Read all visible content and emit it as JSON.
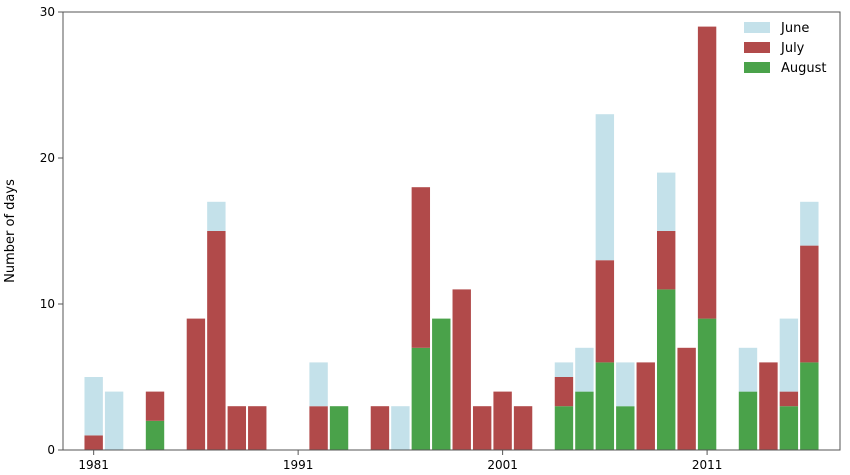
{
  "chart_data": {
    "type": "bar",
    "stacked": true,
    "title": "",
    "xlabel": "",
    "ylabel": "Number of days",
    "xlim": [
      1979.5,
      2017.5
    ],
    "ylim": [
      0,
      30
    ],
    "yticks": [
      0,
      10,
      20,
      30
    ],
    "xticks": [
      1981,
      1991,
      2001,
      2011
    ],
    "grid": false,
    "legend_position": "top-right",
    "x": [
      1981,
      1982,
      1983,
      1984,
      1985,
      1986,
      1987,
      1988,
      1989,
      1990,
      1991,
      1992,
      1993,
      1994,
      1995,
      1996,
      1997,
      1998,
      1999,
      2000,
      2001,
      2002,
      2003,
      2004,
      2005,
      2006,
      2007,
      2008,
      2009,
      2010,
      2011,
      2012,
      2013,
      2014,
      2015,
      2016,
      2017
    ],
    "series": [
      {
        "name": "August",
        "color": "#4aa24a",
        "values": [
          0,
          0,
          0,
          2,
          0,
          0,
          0,
          0,
          0,
          0,
          0,
          0,
          3,
          0,
          0,
          0,
          7,
          9,
          0,
          0,
          0,
          0,
          0,
          3,
          4,
          6,
          3,
          0,
          11,
          0,
          9,
          0,
          4,
          0,
          3,
          6,
          0
        ]
      },
      {
        "name": "July",
        "color": "#b14a4a",
        "values": [
          1,
          0,
          0,
          2,
          0,
          9,
          15,
          3,
          3,
          0,
          0,
          3,
          0,
          0,
          3,
          0,
          11,
          0,
          11,
          3,
          4,
          3,
          0,
          2,
          0,
          7,
          0,
          6,
          4,
          7,
          20,
          0,
          0,
          6,
          1,
          8,
          0
        ]
      },
      {
        "name": "June",
        "color": "#c4e1ea",
        "values": [
          4,
          4,
          0,
          0,
          0,
          0,
          2,
          0,
          0,
          0,
          0,
          3,
          0,
          0,
          0,
          3,
          0,
          0,
          0,
          0,
          0,
          0,
          0,
          1,
          3,
          10,
          3,
          0,
          4,
          0,
          0,
          0,
          3,
          0,
          5,
          3,
          0
        ]
      }
    ],
    "legend_order": [
      "June",
      "July",
      "August"
    ]
  }
}
